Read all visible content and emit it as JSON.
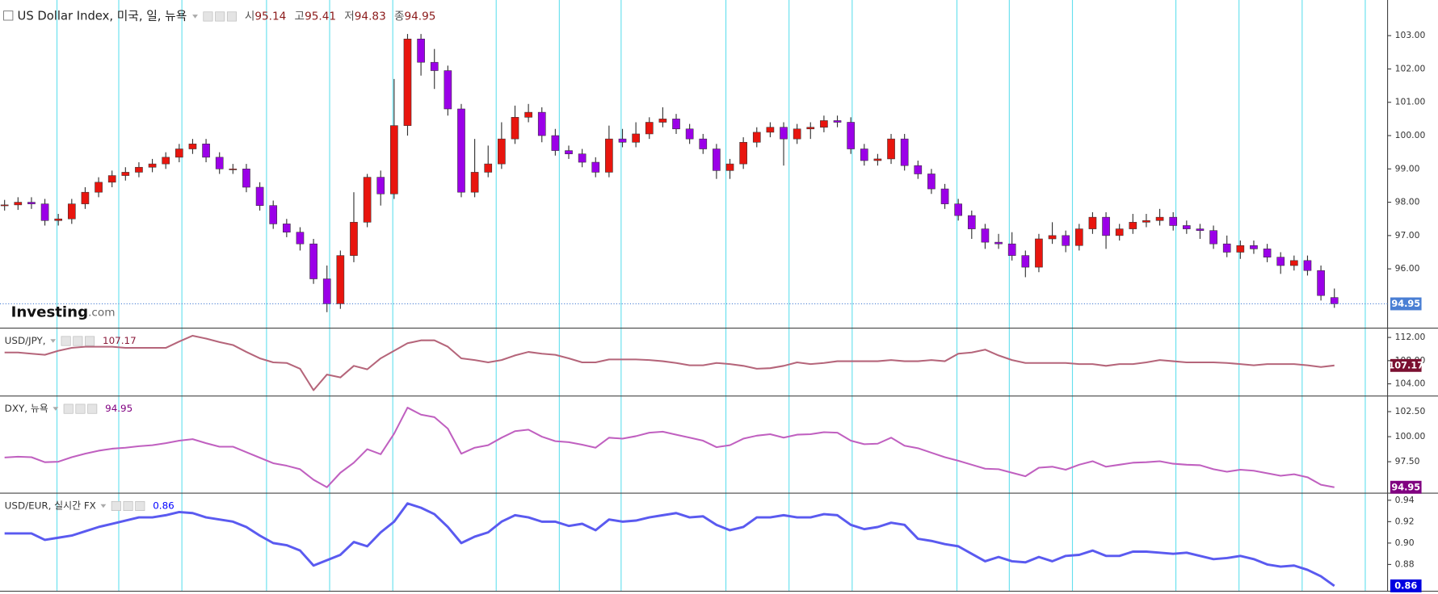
{
  "chart_data": [
    {
      "type": "candlestick",
      "title": "US Dollar Index, 미국, 일, 뉴욕",
      "ohlc_labels": [
        "시",
        "고",
        "저",
        "종"
      ],
      "watermark": [
        "Investing",
        ".com"
      ],
      "up_color": "#e8150e",
      "down_color": "#9b00e8",
      "last_color": "#4a7fd4",
      "ylim": [
        94.22,
        104.07
      ],
      "yticks": [
        {
          "value": 96,
          "label": "96.00"
        },
        {
          "value": 97,
          "label": "97.00"
        },
        {
          "value": 98,
          "label": "98.00"
        },
        {
          "value": 99,
          "label": "99.00"
        },
        {
          "value": 100,
          "label": "100.00"
        },
        {
          "value": 101,
          "label": "101.00"
        },
        {
          "value": 102,
          "label": "102.00"
        },
        {
          "value": 103,
          "label": "103.00"
        }
      ],
      "xticks": [
        3.9,
        8.5,
        13.2,
        19.5,
        24.2,
        28.9,
        36.6,
        41.3,
        45.9,
        53.7,
        58.4,
        63.1,
        70.9,
        74.8,
        79.5,
        87.2,
        91.9,
        96.6,
        101.3
      ],
      "open": [
        97.9,
        97.92,
        98.0,
        97.95,
        97.45,
        97.5,
        97.95,
        98.3,
        98.6,
        98.8,
        98.9,
        99.05,
        99.15,
        99.35,
        99.6,
        99.75,
        99.35,
        99.0,
        99.0,
        98.45,
        97.9,
        97.35,
        97.1,
        96.75,
        95.7,
        94.95,
        96.4,
        97.4,
        98.75,
        98.25,
        100.3,
        102.9,
        102.2,
        101.95,
        100.8,
        98.3,
        98.9,
        99.15,
        99.9,
        100.55,
        100.7,
        100.0,
        99.55,
        99.45,
        99.2,
        98.9,
        99.9,
        99.8,
        100.05,
        100.4,
        100.5,
        100.2,
        99.9,
        99.6,
        98.95,
        99.15,
        99.8,
        100.1,
        100.25,
        99.9,
        100.2,
        100.25,
        100.45,
        100.4,
        99.6,
        99.25,
        99.3,
        99.9,
        99.1,
        98.85,
        98.4,
        97.95,
        97.6,
        97.2,
        96.8,
        96.75,
        96.4,
        96.05,
        96.9,
        97.0,
        96.7,
        97.2,
        97.55,
        97.0,
        97.2,
        97.4,
        97.45,
        97.55,
        97.3,
        97.2,
        97.15,
        96.75,
        96.5,
        96.7,
        96.6,
        96.35,
        96.1,
        96.25,
        95.95,
        95.14
      ],
      "high": [
        98.07,
        98.15,
        98.15,
        98.1,
        97.65,
        98.1,
        98.45,
        98.75,
        98.95,
        99.05,
        99.2,
        99.3,
        99.5,
        99.75,
        99.9,
        99.9,
        99.5,
        99.15,
        99.15,
        98.6,
        98.05,
        97.5,
        97.25,
        96.9,
        96.1,
        96.55,
        98.3,
        98.85,
        98.95,
        101.7,
        103.05,
        103.05,
        102.6,
        102.1,
        100.95,
        99.9,
        99.7,
        100.4,
        100.9,
        100.95,
        100.85,
        100.2,
        99.7,
        99.6,
        99.35,
        100.3,
        100.2,
        100.4,
        100.55,
        100.85,
        100.65,
        100.35,
        100.05,
        99.75,
        99.3,
        99.95,
        100.25,
        100.4,
        100.4,
        100.35,
        100.4,
        100.6,
        100.6,
        100.55,
        99.75,
        99.45,
        100.05,
        100.05,
        99.25,
        99.0,
        98.55,
        98.1,
        97.75,
        97.35,
        97.05,
        97.1,
        96.55,
        97.05,
        97.4,
        97.15,
        97.35,
        97.7,
        97.7,
        97.35,
        97.65,
        97.65,
        97.8,
        97.7,
        97.45,
        97.35,
        97.3,
        97.0,
        96.85,
        96.85,
        96.75,
        96.5,
        96.4,
        96.4,
        96.1,
        95.41
      ],
      "low": [
        97.75,
        97.77,
        97.8,
        97.3,
        97.3,
        97.35,
        97.8,
        98.15,
        98.45,
        98.65,
        98.75,
        98.9,
        99.0,
        99.2,
        99.45,
        99.2,
        98.85,
        98.85,
        98.3,
        97.75,
        97.2,
        96.95,
        96.55,
        95.55,
        94.7,
        94.8,
        96.2,
        97.25,
        97.9,
        98.1,
        100.0,
        101.8,
        101.4,
        100.6,
        98.15,
        98.15,
        98.75,
        99.0,
        99.75,
        100.4,
        99.8,
        99.4,
        99.3,
        99.05,
        98.75,
        98.75,
        99.65,
        99.65,
        99.9,
        100.25,
        100.05,
        99.75,
        99.45,
        98.7,
        98.7,
        99.0,
        99.65,
        99.95,
        99.1,
        99.75,
        99.9,
        100.1,
        100.25,
        99.45,
        99.1,
        99.1,
        99.15,
        98.95,
        98.7,
        98.25,
        97.8,
        97.45,
        96.9,
        96.6,
        96.6,
        96.25,
        95.75,
        95.9,
        96.75,
        96.5,
        96.55,
        97.05,
        96.6,
        96.85,
        97.05,
        97.25,
        97.3,
        97.15,
        97.05,
        96.9,
        96.6,
        96.35,
        96.3,
        96.45,
        96.2,
        95.85,
        95.95,
        95.8,
        95.05,
        94.83
      ],
      "close": [
        97.92,
        98.0,
        97.95,
        97.45,
        97.5,
        97.95,
        98.3,
        98.6,
        98.8,
        98.9,
        99.05,
        99.15,
        99.35,
        99.6,
        99.75,
        99.35,
        99.0,
        99.0,
        98.45,
        97.9,
        97.35,
        97.1,
        96.75,
        95.7,
        94.95,
        96.4,
        97.4,
        98.75,
        98.25,
        100.3,
        102.9,
        102.2,
        101.95,
        100.8,
        98.3,
        98.9,
        99.15,
        99.9,
        100.55,
        100.7,
        100.0,
        99.55,
        99.45,
        99.2,
        98.9,
        99.9,
        99.8,
        100.05,
        100.4,
        100.5,
        100.2,
        99.9,
        99.6,
        98.95,
        99.15,
        99.8,
        100.1,
        100.25,
        99.9,
        100.2,
        100.25,
        100.45,
        100.4,
        99.6,
        99.25,
        99.3,
        99.9,
        99.1,
        98.85,
        98.4,
        97.95,
        97.6,
        97.2,
        96.8,
        96.75,
        96.4,
        96.05,
        96.9,
        97.0,
        96.7,
        97.2,
        97.55,
        97.0,
        97.2,
        97.4,
        97.45,
        97.55,
        97.3,
        97.2,
        97.15,
        96.75,
        96.5,
        96.7,
        96.6,
        96.35,
        96.1,
        96.25,
        95.95,
        95.2,
        94.95
      ]
    },
    {
      "type": "line",
      "title": "USD/JPY,",
      "color": "#b5657a",
      "last_color": "#7a1030",
      "value_color": "#8b1a3a",
      "ylim": [
        101.9,
        113.6
      ],
      "yticks": [
        {
          "value": 104,
          "label": "104.00"
        },
        {
          "value": 108,
          "label": "108.00"
        },
        {
          "value": 112,
          "label": "112.00"
        }
      ],
      "values": [
        109.4,
        109.4,
        109.2,
        109.0,
        109.7,
        110.2,
        110.4,
        110.4,
        110.4,
        110.2,
        110.2,
        110.2,
        110.2,
        111.3,
        112.3,
        111.8,
        111.2,
        110.7,
        109.5,
        108.4,
        107.7,
        107.6,
        106.6,
        102.9,
        105.6,
        105.1,
        107.1,
        106.5,
        108.4,
        109.7,
        111.0,
        111.5,
        111.5,
        110.4,
        108.4,
        108.1,
        107.7,
        108.1,
        108.9,
        109.5,
        109.2,
        109.0,
        108.4,
        107.7,
        107.7,
        108.2,
        108.2,
        108.2,
        108.1,
        107.9,
        107.6,
        107.2,
        107.2,
        107.6,
        107.4,
        107.1,
        106.6,
        106.7,
        107.1,
        107.7,
        107.4,
        107.6,
        107.9,
        107.9,
        107.9,
        107.9,
        108.1,
        107.9,
        107.9,
        108.1,
        107.9,
        109.2,
        109.4,
        109.9,
        108.9,
        108.1,
        107.6,
        107.6,
        107.6,
        107.6,
        107.4,
        107.4,
        107.1,
        107.4,
        107.4,
        107.7,
        108.1,
        107.9,
        107.7,
        107.7,
        107.7,
        107.6,
        107.4,
        107.2,
        107.4,
        107.4,
        107.4,
        107.2,
        106.9,
        107.17
      ]
    },
    {
      "type": "line",
      "title": "DXY, 뉴욕",
      "color": "#c060c0",
      "last_color": "#800080",
      "value_color": "#800080",
      "ylim": [
        94.36,
        104.06
      ],
      "yticks": [
        {
          "value": 97.5,
          "label": "97.50"
        },
        {
          "value": 100,
          "label": "100.00"
        },
        {
          "value": 102.5,
          "label": "102.50"
        }
      ],
      "values": [
        97.92,
        98.0,
        97.95,
        97.45,
        97.5,
        97.95,
        98.3,
        98.6,
        98.8,
        98.9,
        99.05,
        99.15,
        99.35,
        99.6,
        99.75,
        99.35,
        99.0,
        99.0,
        98.45,
        97.9,
        97.35,
        97.1,
        96.75,
        95.7,
        94.95,
        96.4,
        97.4,
        98.75,
        98.25,
        100.3,
        102.9,
        102.2,
        101.95,
        100.8,
        98.3,
        98.9,
        99.15,
        99.9,
        100.55,
        100.7,
        100.0,
        99.55,
        99.45,
        99.2,
        98.9,
        99.9,
        99.8,
        100.05,
        100.4,
        100.5,
        100.2,
        99.9,
        99.6,
        98.95,
        99.15,
        99.8,
        100.1,
        100.25,
        99.9,
        100.2,
        100.25,
        100.45,
        100.4,
        99.6,
        99.25,
        99.3,
        99.9,
        99.1,
        98.85,
        98.4,
        97.95,
        97.6,
        97.2,
        96.8,
        96.75,
        96.4,
        96.05,
        96.9,
        97.0,
        96.7,
        97.2,
        97.55,
        97.0,
        97.2,
        97.4,
        97.45,
        97.55,
        97.3,
        97.2,
        97.15,
        96.75,
        96.5,
        96.7,
        96.6,
        96.35,
        96.1,
        96.25,
        95.95,
        95.2,
        94.95
      ]
    },
    {
      "type": "line",
      "title": "USD/EUR, 실시간 FX",
      "color": "#5a5af0",
      "last_color": "#0000e0",
      "value_color": "#0000ff",
      "ylim": [
        0.855,
        0.9466
      ],
      "yticks": [
        {
          "value": 0.88,
          "label": "0.88"
        },
        {
          "value": 0.9,
          "label": "0.90"
        },
        {
          "value": 0.92,
          "label": "0.92"
        },
        {
          "value": 0.94,
          "label": "0.94"
        }
      ],
      "values": [
        0.909,
        0.909,
        0.909,
        0.903,
        0.905,
        0.907,
        0.911,
        0.915,
        0.918,
        0.921,
        0.924,
        0.924,
        0.926,
        0.929,
        0.928,
        0.924,
        0.922,
        0.92,
        0.915,
        0.907,
        0.9,
        0.898,
        0.893,
        0.879,
        0.884,
        0.889,
        0.901,
        0.897,
        0.91,
        0.92,
        0.937,
        0.933,
        0.927,
        0.915,
        0.9,
        0.906,
        0.91,
        0.92,
        0.926,
        0.924,
        0.92,
        0.92,
        0.916,
        0.918,
        0.912,
        0.922,
        0.92,
        0.921,
        0.924,
        0.926,
        0.928,
        0.924,
        0.925,
        0.917,
        0.912,
        0.915,
        0.924,
        0.924,
        0.926,
        0.924,
        0.924,
        0.927,
        0.926,
        0.917,
        0.913,
        0.915,
        0.919,
        0.917,
        0.904,
        0.902,
        0.899,
        0.897,
        0.89,
        0.883,
        0.887,
        0.883,
        0.882,
        0.887,
        0.883,
        0.888,
        0.889,
        0.893,
        0.888,
        0.888,
        0.892,
        0.892,
        0.891,
        0.89,
        0.891,
        0.888,
        0.885,
        0.886,
        0.888,
        0.885,
        0.88,
        0.878,
        0.879,
        0.875,
        0.869,
        0.86
      ]
    }
  ]
}
